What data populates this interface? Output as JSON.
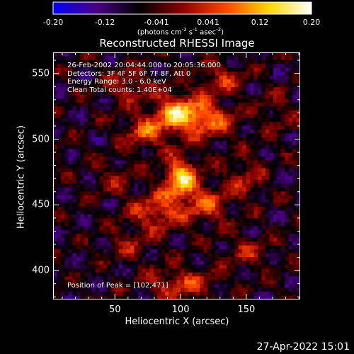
{
  "chart_data": {
    "type": "heatmap",
    "title": "Reconstructed RHESSI Image",
    "xlabel": "Heliocentric X (arcsec)",
    "ylabel": "Heliocentric Y (arcsec)",
    "xlim": [
      3,
      191
    ],
    "ylim": [
      378,
      566
    ],
    "xticks": [
      "50",
      "100",
      "150"
    ],
    "yticks": [
      "400",
      "450",
      "500",
      "550"
    ],
    "colorbar": {
      "ticks": [
        "-0.20",
        "-0.12",
        "-0.041",
        "0.041",
        "0.12",
        "0.20"
      ],
      "label_text": "(photons cm",
      "label_sup1": "-2",
      "label_mid": " s",
      "label_sup2": "-1",
      "label_mid2": " asec",
      "label_sup3": "-2",
      "label_end": ")",
      "range": [
        -0.2,
        0.2
      ],
      "colormap_stops": [
        "#0000ff",
        "#4b0082",
        "#000000",
        "#8b0000",
        "#ff4500",
        "#ffd700",
        "#ffffff"
      ]
    },
    "annotations": [
      "26-Feb-2002 20:04:44.000 to 20:05:36.000",
      "Detectors: 3F 4F 5F 6F 7F 8F, Att 0",
      "Energy Range: 3.0 - 6.0 keV",
      "Clean     Total counts: 1.40E+04"
    ],
    "peak_label": "Position of Peak = [102,471]",
    "peak": {
      "x": 102,
      "y": 471
    },
    "sources": [
      {
        "x": 100,
        "y": 470,
        "amp": 1.0,
        "sx": 9,
        "sy": 11
      },
      {
        "x": 96,
        "y": 520,
        "amp": 0.85,
        "sx": 12,
        "sy": 10
      },
      {
        "x": 120,
        "y": 515,
        "amp": 0.7,
        "sx": 14,
        "sy": 10
      },
      {
        "x": 72,
        "y": 505,
        "amp": 0.55,
        "sx": 12,
        "sy": 9
      },
      {
        "x": 60,
        "y": 540,
        "amp": 0.45,
        "sx": 12,
        "sy": 8
      },
      {
        "x": 130,
        "y": 545,
        "amp": 0.45,
        "sx": 12,
        "sy": 8
      },
      {
        "x": 82,
        "y": 445,
        "amp": 0.6,
        "sx": 14,
        "sy": 10
      },
      {
        "x": 120,
        "y": 450,
        "amp": 0.55,
        "sx": 12,
        "sy": 10
      },
      {
        "x": 150,
        "y": 470,
        "amp": 0.4,
        "sx": 10,
        "sy": 10
      },
      {
        "x": 50,
        "y": 470,
        "amp": 0.3,
        "sx": 10,
        "sy": 8
      },
      {
        "x": 100,
        "y": 390,
        "amp": 0.55,
        "sx": 18,
        "sy": 8
      },
      {
        "x": 60,
        "y": 420,
        "amp": 0.3,
        "sx": 12,
        "sy": 8
      },
      {
        "x": 150,
        "y": 415,
        "amp": 0.35,
        "sx": 12,
        "sy": 8
      },
      {
        "x": 175,
        "y": 520,
        "amp": 0.25,
        "sx": 10,
        "sy": 10
      }
    ]
  },
  "footer": {
    "timestamp": "27-Apr-2022 15:01"
  }
}
